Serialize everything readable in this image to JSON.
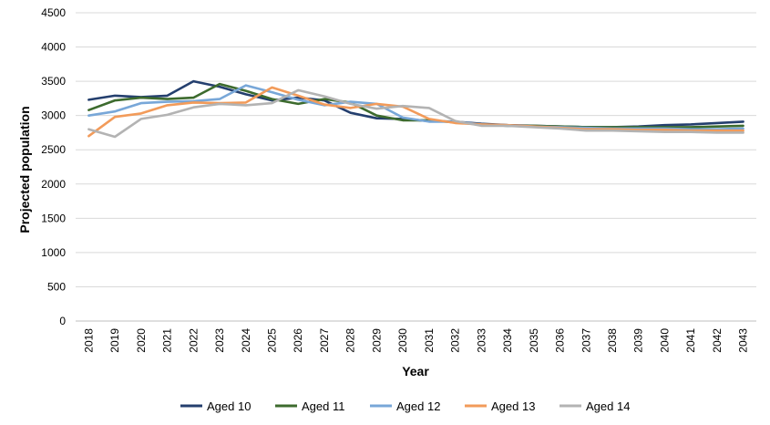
{
  "chart_data": {
    "type": "line",
    "title": "",
    "xlabel": "Year",
    "ylabel": "Projected population",
    "ylim": [
      0,
      4500
    ],
    "yticks": [
      0,
      500,
      1000,
      1500,
      2000,
      2500,
      3000,
      3500,
      4000,
      4500
    ],
    "grid": "horizontal",
    "legend_position": "bottom",
    "categories": [
      "2018",
      "2019",
      "2020",
      "2021",
      "2022",
      "2023",
      "2024",
      "2025",
      "2026",
      "2027",
      "2028",
      "2029",
      "2030",
      "2031",
      "2032",
      "2033",
      "2034",
      "2035",
      "2036",
      "2037",
      "2038",
      "2039",
      "2040",
      "2041",
      "2042",
      "2043"
    ],
    "series": [
      {
        "name": "Aged 10",
        "color": "#243f6e",
        "values": [
          3230,
          3290,
          3270,
          3290,
          3500,
          3420,
          3310,
          3220,
          3260,
          3220,
          3040,
          2960,
          2950,
          2920,
          2910,
          2880,
          2860,
          2850,
          2840,
          2830,
          2830,
          2840,
          2860,
          2870,
          2890,
          2910
        ]
      },
      {
        "name": "Aged 11",
        "color": "#3d6b2e",
        "values": [
          3080,
          3220,
          3260,
          3240,
          3260,
          3460,
          3360,
          3240,
          3170,
          3240,
          3190,
          3000,
          2930,
          2930,
          2900,
          2870,
          2850,
          2850,
          2840,
          2830,
          2830,
          2830,
          2830,
          2830,
          2840,
          2850
        ]
      },
      {
        "name": "Aged 12",
        "color": "#78a7d8",
        "values": [
          3000,
          3060,
          3180,
          3200,
          3210,
          3240,
          3440,
          3340,
          3230,
          3150,
          3200,
          3170,
          2970,
          2910,
          2910,
          2870,
          2850,
          2840,
          2830,
          2820,
          2810,
          2810,
          2810,
          2800,
          2800,
          2810
        ]
      },
      {
        "name": "Aged 13",
        "color": "#f29b5a",
        "values": [
          2700,
          2980,
          3030,
          3150,
          3190,
          3180,
          3190,
          3410,
          3290,
          3160,
          3110,
          3170,
          3130,
          2950,
          2890,
          2870,
          2860,
          2840,
          2820,
          2800,
          2800,
          2790,
          2790,
          2780,
          2780,
          2780
        ]
      },
      {
        "name": "Aged 14",
        "color": "#b3b3b3",
        "values": [
          2800,
          2690,
          2950,
          3010,
          3120,
          3170,
          3150,
          3180,
          3370,
          3280,
          3170,
          3100,
          3140,
          3110,
          2920,
          2850,
          2850,
          2830,
          2810,
          2780,
          2780,
          2770,
          2760,
          2760,
          2750,
          2750
        ]
      }
    ]
  }
}
